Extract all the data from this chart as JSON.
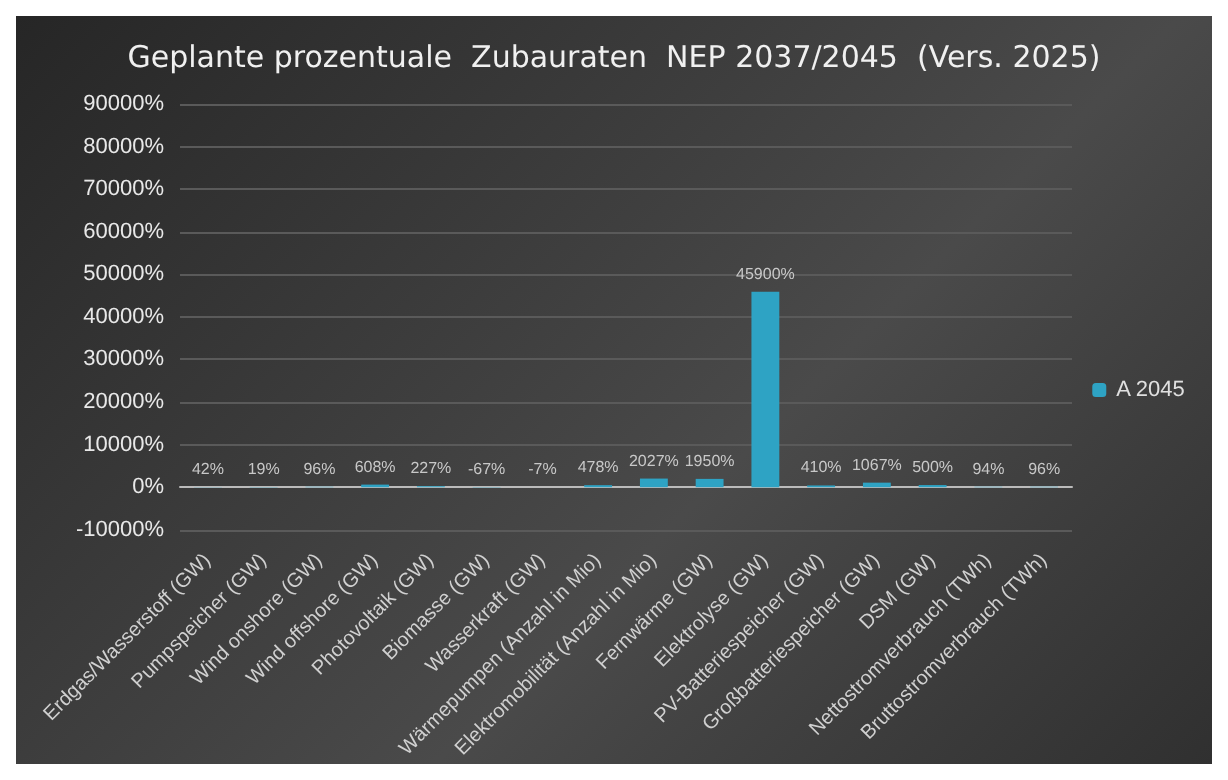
{
  "chart_data": {
    "type": "bar",
    "title": "Geplante prozentuale  Zubauraten  NEP 2037/2045  (Vers. 2025)",
    "categories": [
      "Erdgas/Wasserstoff (GW)",
      "Pumpspeicher (GW)",
      "Wind onshore (GW)",
      "Wind offshore (GW)",
      "Photovoltaik (GW)",
      "Biomasse (GW)",
      "Wasserkraft (GW)",
      "Wärmepumpen (Anzahl in Mio)",
      "Elektromobilität (Anzahl in Mio)",
      "Fernwärme (GW)",
      "Elektrolyse (GW)",
      "PV-Batteriespeicher (GW)",
      "Großbatteriespeicher (GW)",
      "DSM (GW)",
      "Nettostromverbrauch (TWh)",
      "Bruttostromverbrauch (TWh)"
    ],
    "series": [
      {
        "name": "A 2045",
        "color": "#2ea3c4",
        "values": [
          42,
          19,
          96,
          608,
          227,
          -67,
          -7,
          478,
          2027,
          1950,
          45900,
          410,
          1067,
          500,
          94,
          96
        ],
        "value_labels": [
          "42%",
          "19%",
          "96%",
          "608%",
          "227%",
          "-67%",
          "-7%",
          "478%",
          "2027%",
          "1950%",
          "45900%",
          "410%",
          "1067%",
          "500%",
          "94%",
          "96%"
        ]
      }
    ],
    "ylim": [
      -10000,
      90000
    ],
    "yticks": [
      {
        "value": -10000,
        "label": "-10000%"
      },
      {
        "value": 0,
        "label": "0%"
      },
      {
        "value": 10000,
        "label": "10000%"
      },
      {
        "value": 20000,
        "label": "20000%"
      },
      {
        "value": 30000,
        "label": "30000%"
      },
      {
        "value": 40000,
        "label": "40000%"
      },
      {
        "value": 50000,
        "label": "50000%"
      },
      {
        "value": 60000,
        "label": "60000%"
      },
      {
        "value": 70000,
        "label": "70000%"
      },
      {
        "value": 80000,
        "label": "80000%"
      },
      {
        "value": 90000,
        "label": "90000%"
      }
    ],
    "grid": "y",
    "legend": "right"
  }
}
